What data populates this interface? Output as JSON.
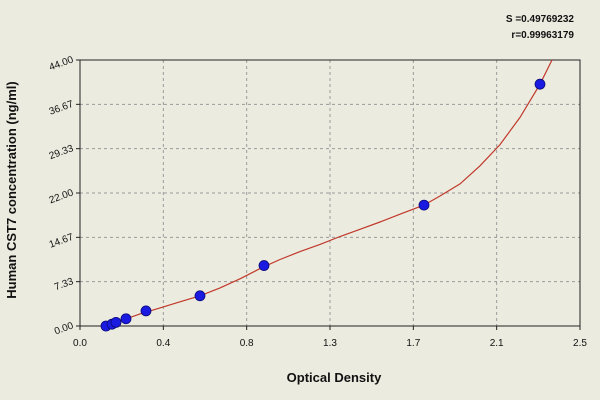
{
  "chart_data": {
    "type": "scatter",
    "title": "",
    "xlabel": "Optical Density",
    "ylabel": "Human CST7 concentration (ng/ml)",
    "xlim": [
      0,
      2.5
    ],
    "ylim": [
      0,
      44
    ],
    "x_ticks": [
      "0.0",
      "0.4",
      "0.8",
      "1.3",
      "1.7",
      "2.1",
      "2.5"
    ],
    "y_ticks": [
      "0.00",
      "7.33",
      "14.67",
      "22.00",
      "29.33",
      "36.67",
      "44.00"
    ],
    "grid": true,
    "annotations": [
      "S =0.49769232",
      "r=0.99963179"
    ],
    "series": [
      {
        "points": [
          {
            "x": 0.13,
            "y": 0.0
          },
          {
            "x": 0.16,
            "y": 0.3
          },
          {
            "x": 0.18,
            "y": 0.6
          },
          {
            "x": 0.23,
            "y": 1.2
          },
          {
            "x": 0.33,
            "y": 2.5
          },
          {
            "x": 0.6,
            "y": 5.0
          },
          {
            "x": 0.92,
            "y": 10.0
          },
          {
            "x": 1.72,
            "y": 20.0
          },
          {
            "x": 2.3,
            "y": 40.0
          }
        ],
        "color": "#1a1ae0"
      }
    ],
    "fit_curve": {
      "points": [
        [
          0.12,
          0.0
        ],
        [
          0.2,
          0.85
        ],
        [
          0.3,
          2.0
        ],
        [
          0.4,
          3.0
        ],
        [
          0.5,
          4.0
        ],
        [
          0.6,
          5.0
        ],
        [
          0.7,
          6.3
        ],
        [
          0.8,
          7.8
        ],
        [
          0.9,
          9.5
        ],
        [
          1.0,
          11.0
        ],
        [
          1.1,
          12.3
        ],
        [
          1.2,
          13.5
        ],
        [
          1.3,
          14.8
        ],
        [
          1.4,
          16.0
        ],
        [
          1.5,
          17.2
        ],
        [
          1.6,
          18.5
        ],
        [
          1.72,
          20.0
        ],
        [
          1.8,
          21.5
        ],
        [
          1.9,
          23.5
        ],
        [
          2.0,
          26.5
        ],
        [
          2.1,
          30.0
        ],
        [
          2.2,
          34.5
        ],
        [
          2.3,
          40.0
        ],
        [
          2.36,
          44.0
        ]
      ],
      "color": "#c0392b"
    }
  }
}
